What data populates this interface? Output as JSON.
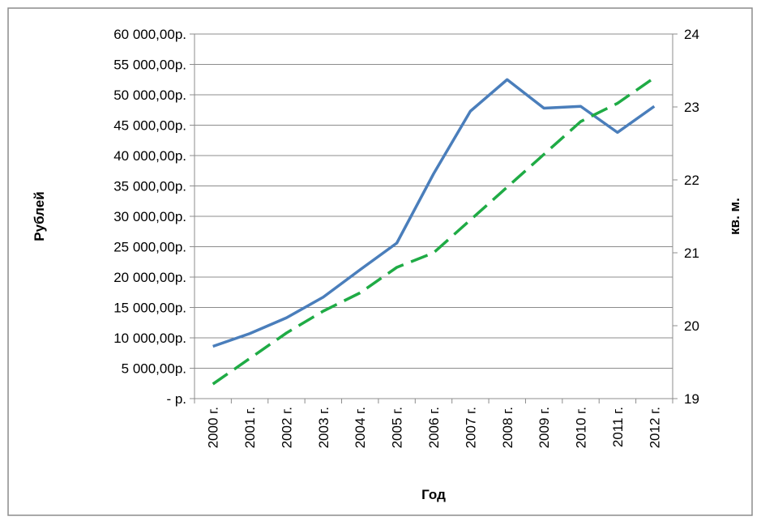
{
  "chart_data": {
    "type": "line",
    "x_label": "Год",
    "y_label": "Рублей",
    "y2_label": "кв. м.",
    "categories": [
      "2000 г.",
      "2001 г.",
      "2002 г.",
      "2003 г.",
      "2004 г.",
      "2005 г.",
      "2006 г.",
      "2007 г.",
      "2008 г.",
      "2009 г.",
      "2010 г.",
      "2011 г.",
      "2012 г."
    ],
    "series": [
      {
        "color": "#4a7ebb",
        "dashed": false,
        "values": [
          8600,
          10700,
          13300,
          16700,
          21200,
          25600,
          37000,
          47300,
          52500,
          47800,
          48100,
          43800,
          48100
        ]
      },
      {
        "color": "#1fab45",
        "dashed": true,
        "axis": "y2",
        "values": [
          19.2,
          19.55,
          19.9,
          20.2,
          20.45,
          20.8,
          21.0,
          21.45,
          21.9,
          22.35,
          22.8,
          23.05,
          23.4
        ]
      }
    ],
    "ylim": [
      0,
      60000
    ],
    "yticks": [
      {
        "value": 0,
        "label": "- р."
      },
      {
        "value": 5000,
        "label": "5 000,00р."
      },
      {
        "value": 10000,
        "label": "10 000,00р."
      },
      {
        "value": 15000,
        "label": "15 000,00р."
      },
      {
        "value": 20000,
        "label": "20 000,00р."
      },
      {
        "value": 25000,
        "label": "25 000,00р."
      },
      {
        "value": 30000,
        "label": "30 000,00р."
      },
      {
        "value": 35000,
        "label": "35 000,00р."
      },
      {
        "value": 40000,
        "label": "40 000,00р."
      },
      {
        "value": 45000,
        "label": "45 000,00р."
      },
      {
        "value": 50000,
        "label": "50 000,00р."
      },
      {
        "value": 55000,
        "label": "55 000,00р."
      },
      {
        "value": 60000,
        "label": "60 000,00р."
      }
    ],
    "y2lim": [
      19,
      24
    ],
    "y2ticks": [
      19,
      20,
      21,
      22,
      23,
      24
    ],
    "grid": true
  }
}
